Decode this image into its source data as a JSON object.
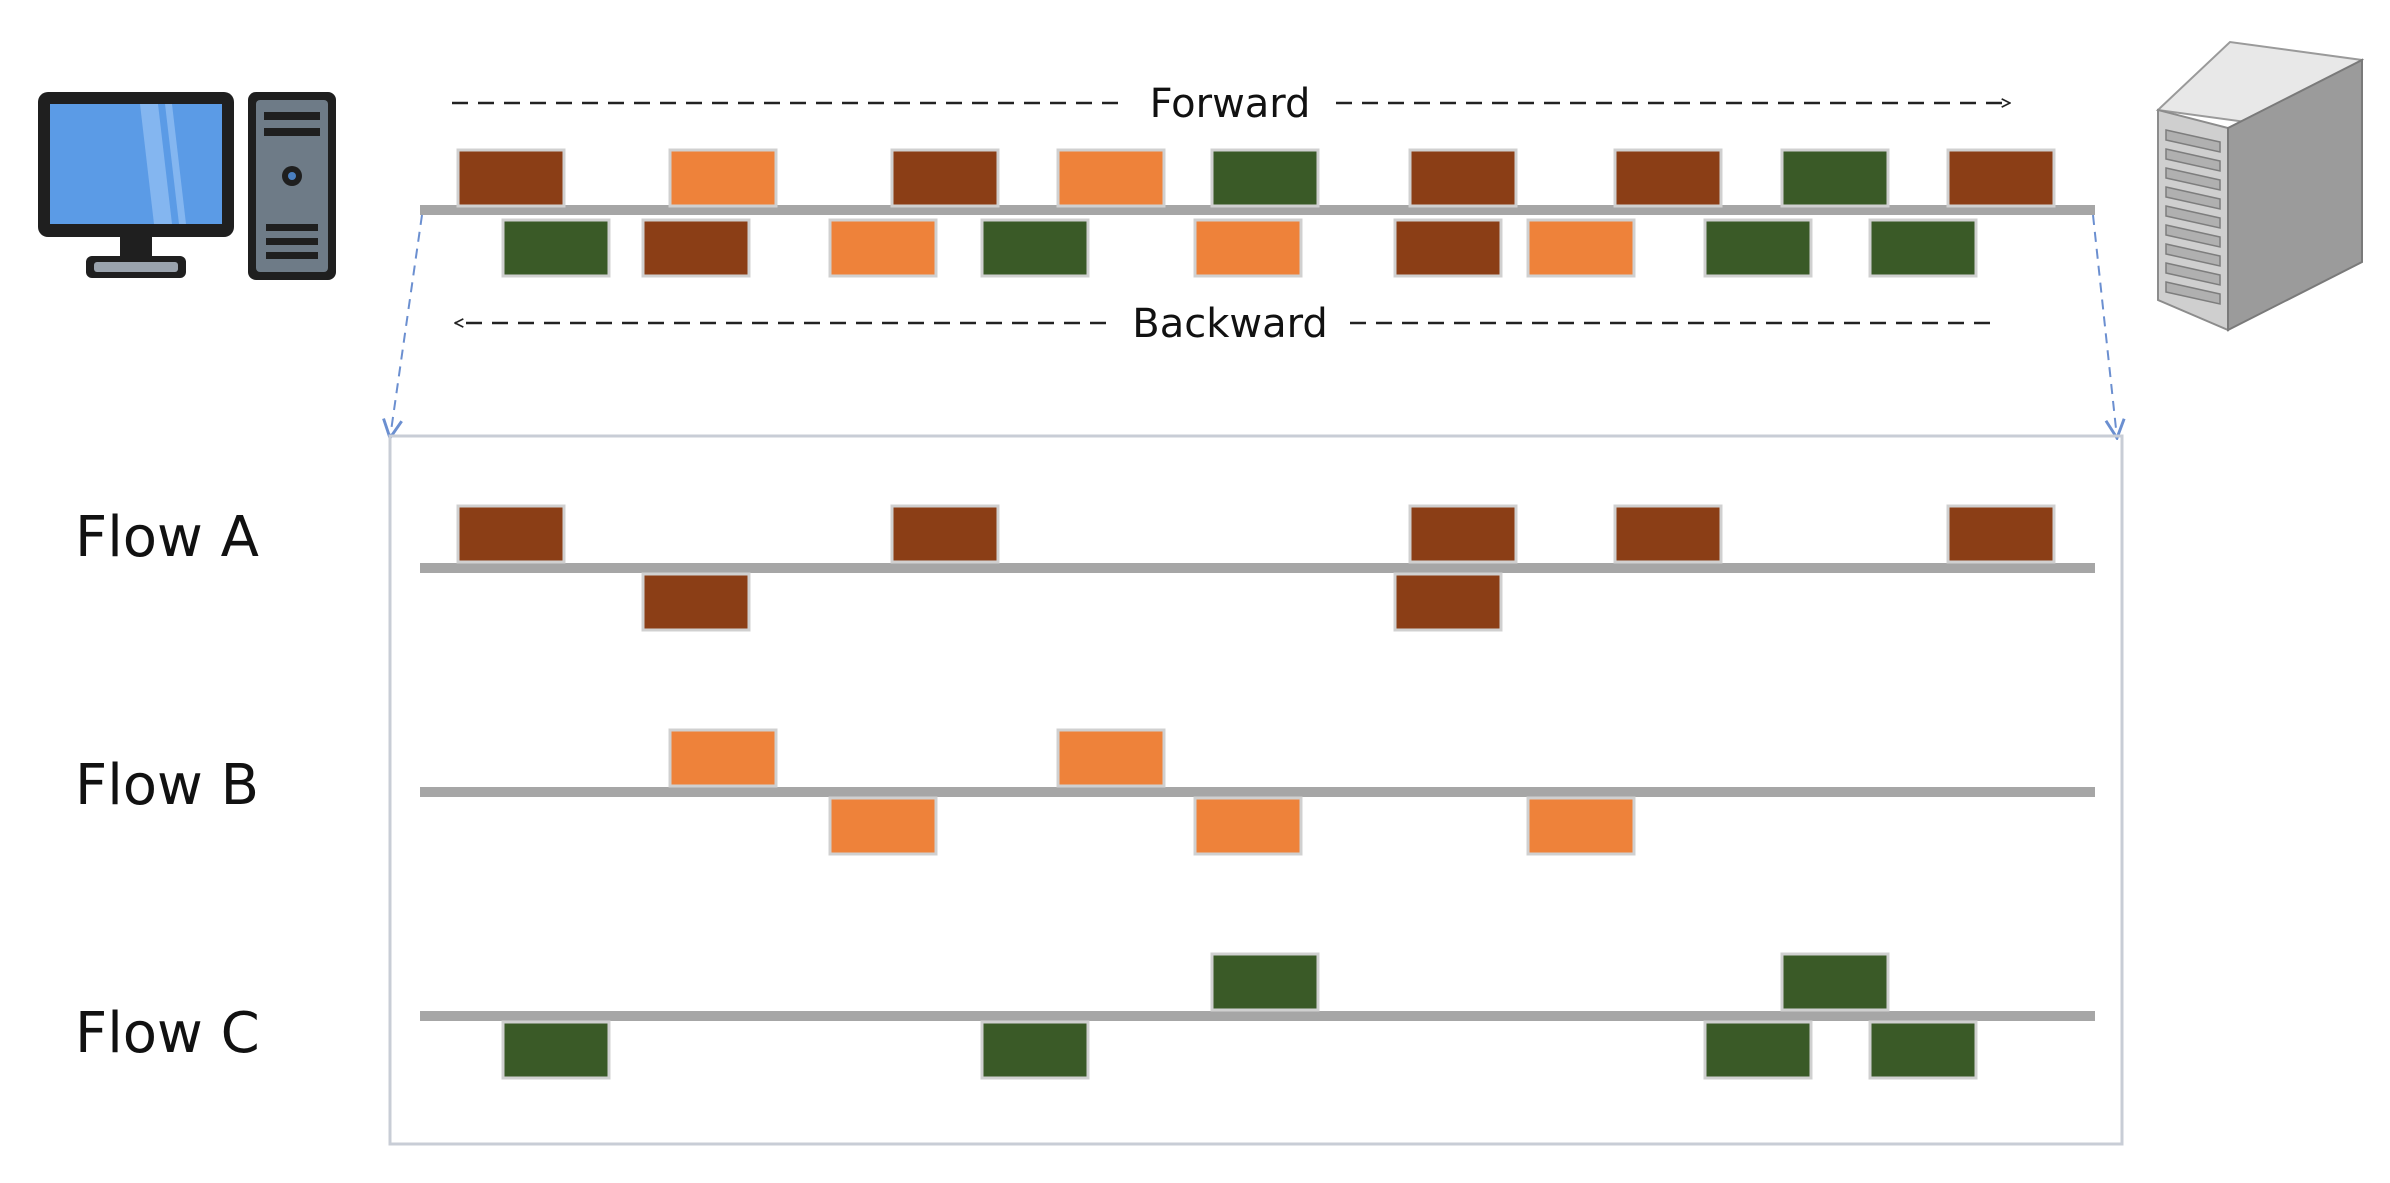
{
  "colors": {
    "brown": "#8B3E16",
    "orange": "#EE823A",
    "green": "#3A5A27",
    "line": "#A6A6A6",
    "box_border": "#C8CDD6",
    "zoom_arrow": "#6B8FD0"
  },
  "icons": {
    "client": "desktop-computer-icon",
    "server": "server-tower-icon"
  },
  "direction_labels": {
    "forward": "Forward",
    "backward": "Backward"
  },
  "combined": {
    "forward": [
      "brown",
      "orange",
      "brown",
      "orange",
      "green",
      "brown",
      "brown",
      "green",
      "brown"
    ],
    "backward": [
      "green",
      "brown",
      "orange",
      "green",
      "orange",
      "brown",
      "orange",
      "green",
      "green"
    ]
  },
  "flows": [
    {
      "label": "Flow A",
      "color": "brown",
      "forward": [
        0,
        2,
        5,
        6,
        8
      ],
      "backward": [
        1,
        5
      ]
    },
    {
      "label": "Flow B",
      "color": "orange",
      "forward": [
        1,
        3
      ],
      "backward": [
        2,
        4,
        6
      ]
    },
    {
      "label": "Flow C",
      "color": "green",
      "forward": [
        4,
        7
      ],
      "backward": [
        0,
        3,
        7,
        8
      ]
    }
  ]
}
